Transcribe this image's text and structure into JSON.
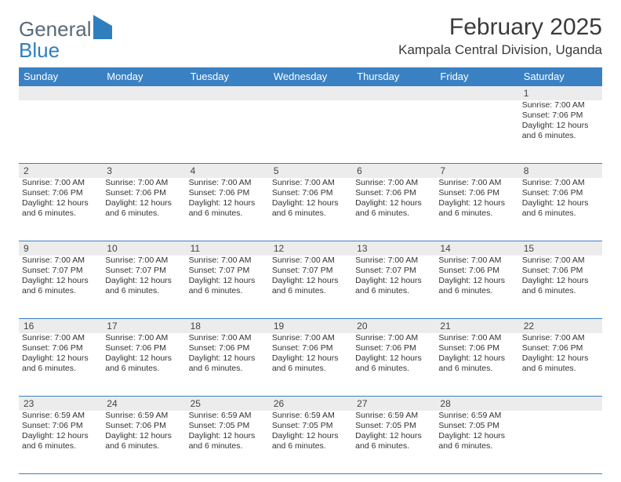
{
  "logo": {
    "word1": "General",
    "word2": "Blue"
  },
  "title": "February 2025",
  "subtitle": "Kampala Central Division, Uganda",
  "colors": {
    "header_bg": "#3a81c4",
    "header_text": "#ffffff",
    "daynum_bg": "#ececec",
    "rule": "#3a81c4",
    "logo_gray": "#5a6a78",
    "logo_blue": "#2f7fbf"
  },
  "day_names": [
    "Sunday",
    "Monday",
    "Tuesday",
    "Wednesday",
    "Thursday",
    "Friday",
    "Saturday"
  ],
  "weeks": [
    {
      "nums": [
        "",
        "",
        "",
        "",
        "",
        "",
        "1"
      ],
      "cells": [
        null,
        null,
        null,
        null,
        null,
        null,
        {
          "sunrise": "7:00 AM",
          "sunset": "7:06 PM",
          "daylight": "12 hours and 6 minutes."
        }
      ]
    },
    {
      "nums": [
        "2",
        "3",
        "4",
        "5",
        "6",
        "7",
        "8"
      ],
      "cells": [
        {
          "sunrise": "7:00 AM",
          "sunset": "7:06 PM",
          "daylight": "12 hours and 6 minutes."
        },
        {
          "sunrise": "7:00 AM",
          "sunset": "7:06 PM",
          "daylight": "12 hours and 6 minutes."
        },
        {
          "sunrise": "7:00 AM",
          "sunset": "7:06 PM",
          "daylight": "12 hours and 6 minutes."
        },
        {
          "sunrise": "7:00 AM",
          "sunset": "7:06 PM",
          "daylight": "12 hours and 6 minutes."
        },
        {
          "sunrise": "7:00 AM",
          "sunset": "7:06 PM",
          "daylight": "12 hours and 6 minutes."
        },
        {
          "sunrise": "7:00 AM",
          "sunset": "7:06 PM",
          "daylight": "12 hours and 6 minutes."
        },
        {
          "sunrise": "7:00 AM",
          "sunset": "7:06 PM",
          "daylight": "12 hours and 6 minutes."
        }
      ]
    },
    {
      "nums": [
        "9",
        "10",
        "11",
        "12",
        "13",
        "14",
        "15"
      ],
      "cells": [
        {
          "sunrise": "7:00 AM",
          "sunset": "7:07 PM",
          "daylight": "12 hours and 6 minutes."
        },
        {
          "sunrise": "7:00 AM",
          "sunset": "7:07 PM",
          "daylight": "12 hours and 6 minutes."
        },
        {
          "sunrise": "7:00 AM",
          "sunset": "7:07 PM",
          "daylight": "12 hours and 6 minutes."
        },
        {
          "sunrise": "7:00 AM",
          "sunset": "7:07 PM",
          "daylight": "12 hours and 6 minutes."
        },
        {
          "sunrise": "7:00 AM",
          "sunset": "7:07 PM",
          "daylight": "12 hours and 6 minutes."
        },
        {
          "sunrise": "7:00 AM",
          "sunset": "7:06 PM",
          "daylight": "12 hours and 6 minutes."
        },
        {
          "sunrise": "7:00 AM",
          "sunset": "7:06 PM",
          "daylight": "12 hours and 6 minutes."
        }
      ]
    },
    {
      "nums": [
        "16",
        "17",
        "18",
        "19",
        "20",
        "21",
        "22"
      ],
      "cells": [
        {
          "sunrise": "7:00 AM",
          "sunset": "7:06 PM",
          "daylight": "12 hours and 6 minutes."
        },
        {
          "sunrise": "7:00 AM",
          "sunset": "7:06 PM",
          "daylight": "12 hours and 6 minutes."
        },
        {
          "sunrise": "7:00 AM",
          "sunset": "7:06 PM",
          "daylight": "12 hours and 6 minutes."
        },
        {
          "sunrise": "7:00 AM",
          "sunset": "7:06 PM",
          "daylight": "12 hours and 6 minutes."
        },
        {
          "sunrise": "7:00 AM",
          "sunset": "7:06 PM",
          "daylight": "12 hours and 6 minutes."
        },
        {
          "sunrise": "7:00 AM",
          "sunset": "7:06 PM",
          "daylight": "12 hours and 6 minutes."
        },
        {
          "sunrise": "7:00 AM",
          "sunset": "7:06 PM",
          "daylight": "12 hours and 6 minutes."
        }
      ]
    },
    {
      "nums": [
        "23",
        "24",
        "25",
        "26",
        "27",
        "28",
        ""
      ],
      "cells": [
        {
          "sunrise": "6:59 AM",
          "sunset": "7:06 PM",
          "daylight": "12 hours and 6 minutes."
        },
        {
          "sunrise": "6:59 AM",
          "sunset": "7:06 PM",
          "daylight": "12 hours and 6 minutes."
        },
        {
          "sunrise": "6:59 AM",
          "sunset": "7:05 PM",
          "daylight": "12 hours and 6 minutes."
        },
        {
          "sunrise": "6:59 AM",
          "sunset": "7:05 PM",
          "daylight": "12 hours and 6 minutes."
        },
        {
          "sunrise": "6:59 AM",
          "sunset": "7:05 PM",
          "daylight": "12 hours and 6 minutes."
        },
        {
          "sunrise": "6:59 AM",
          "sunset": "7:05 PM",
          "daylight": "12 hours and 6 minutes."
        },
        null
      ]
    }
  ],
  "labels": {
    "sunrise": "Sunrise: ",
    "sunset": "Sunset: ",
    "daylight": "Daylight: "
  }
}
